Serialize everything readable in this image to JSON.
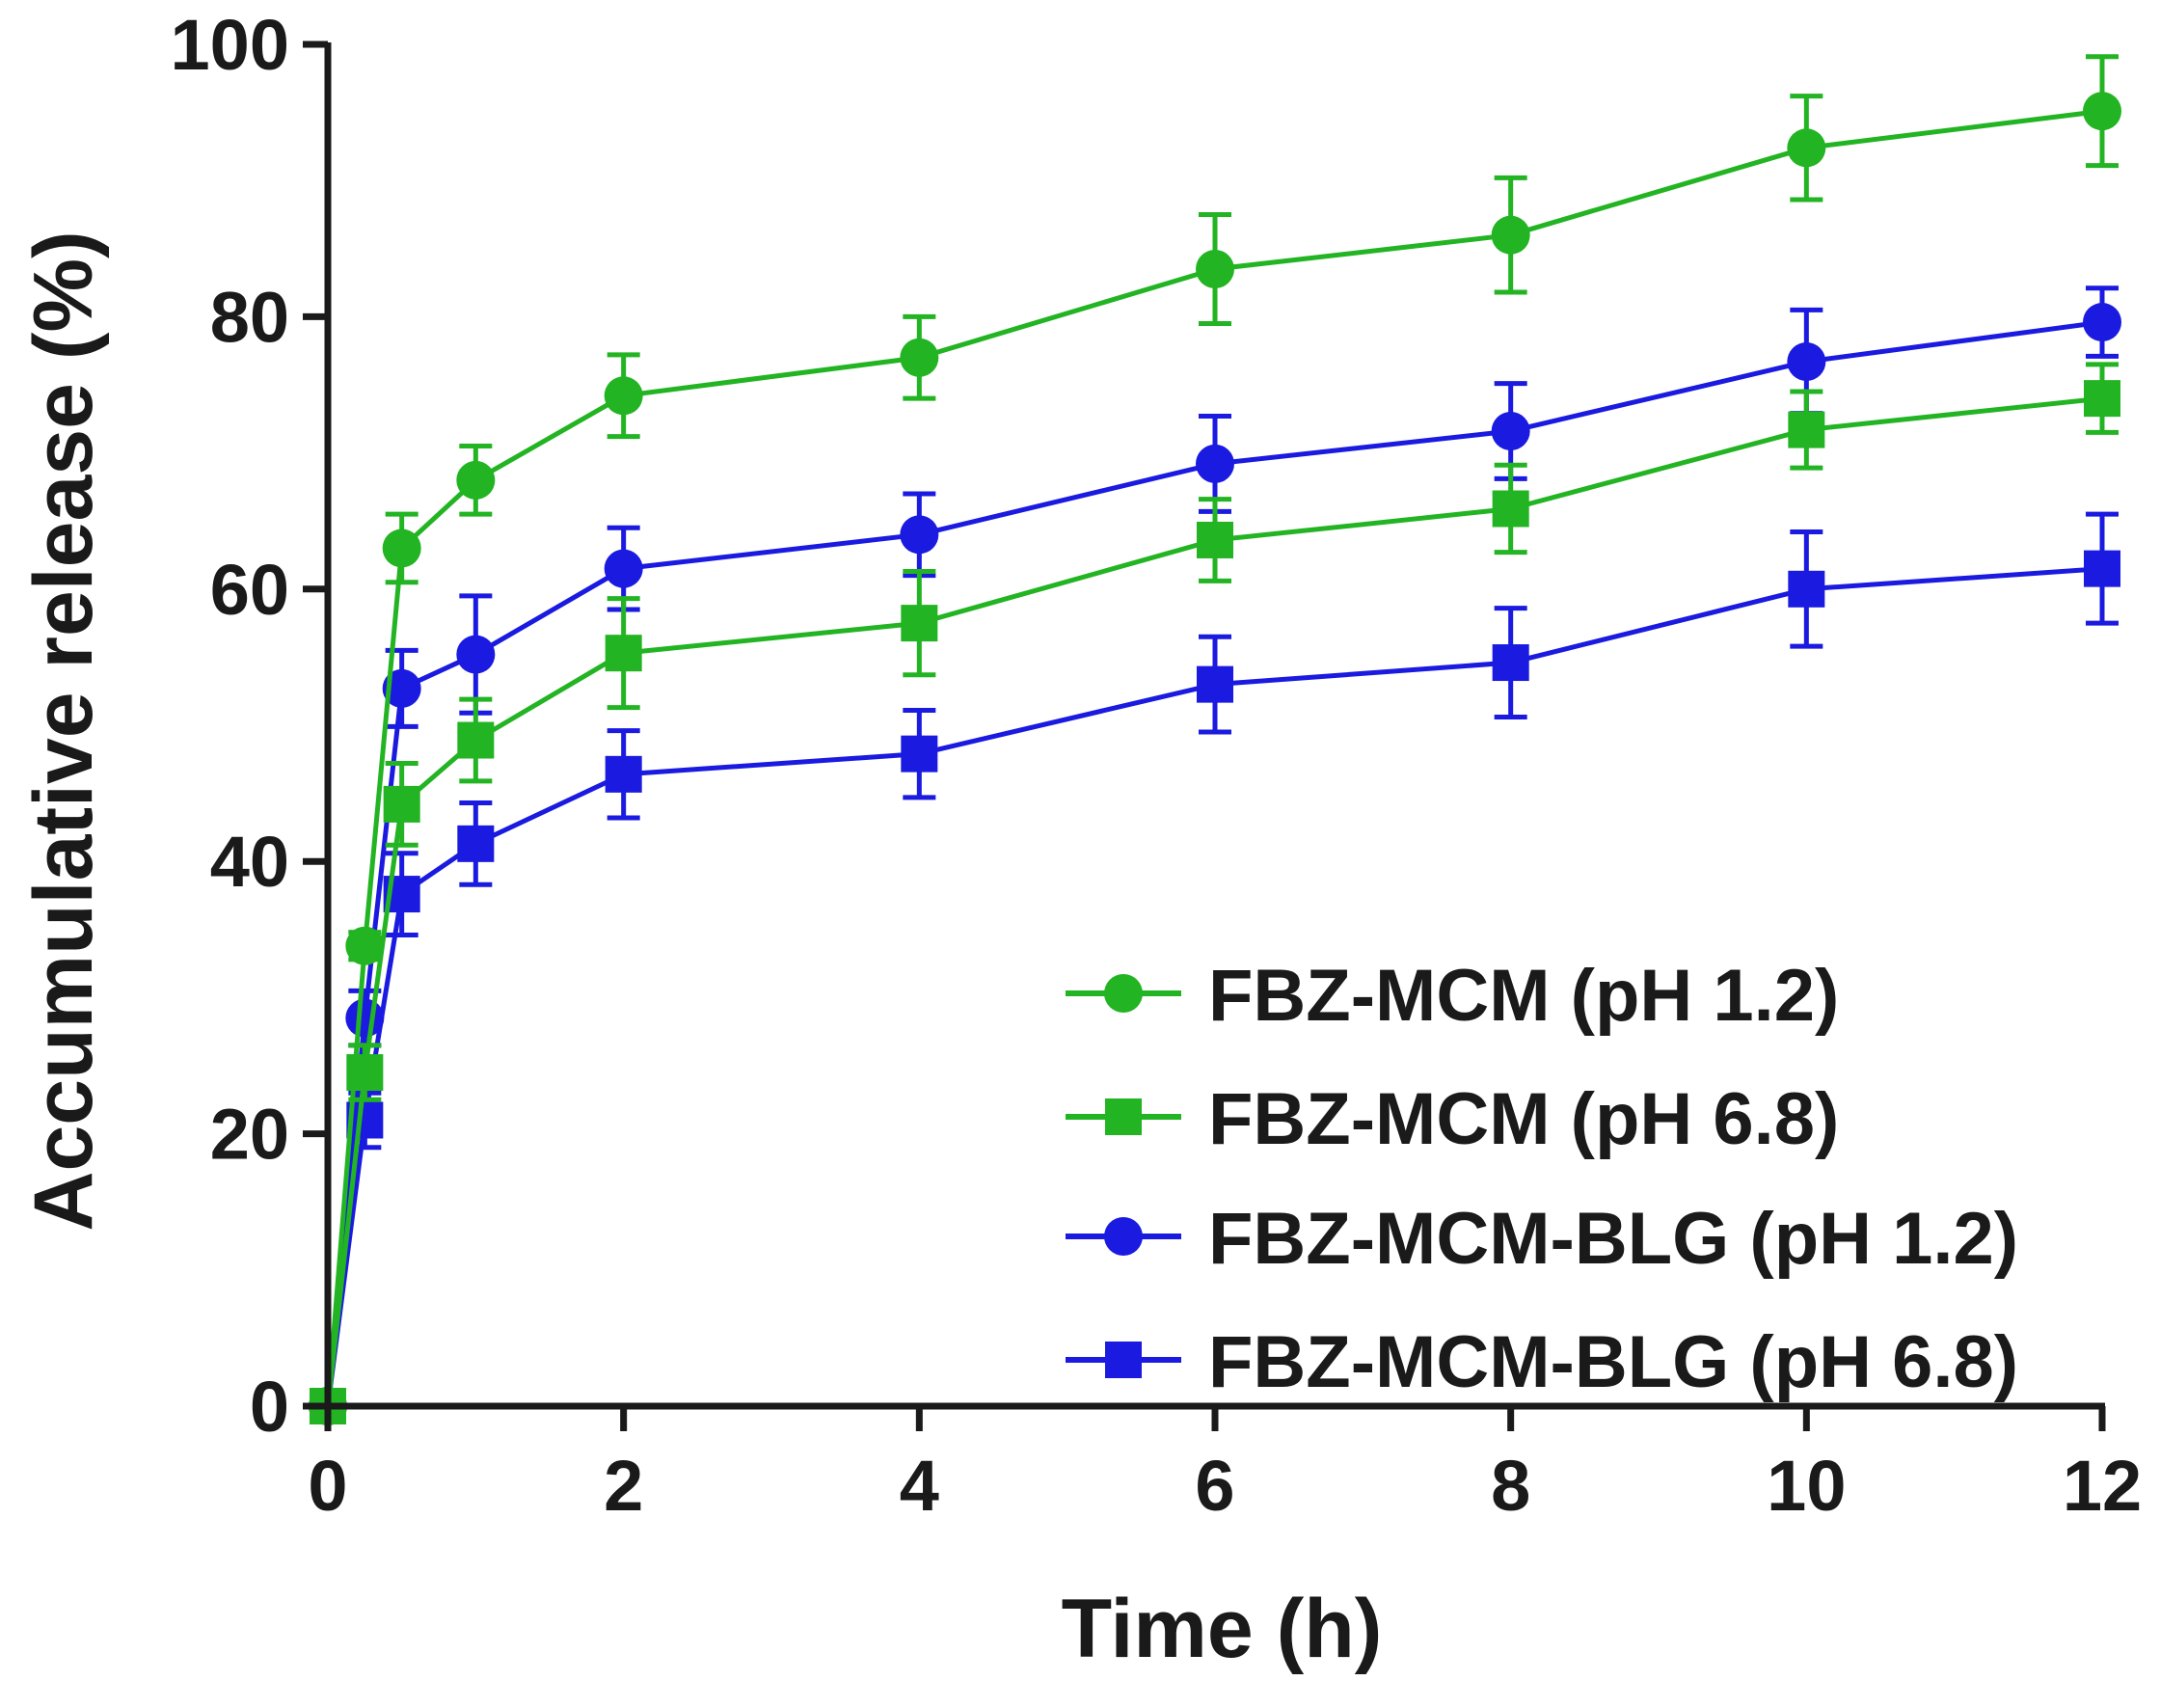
{
  "chart_data": {
    "type": "line",
    "title": "",
    "xlabel": "Time (h)",
    "ylabel": "Accumulative release (%)",
    "xlim": [
      0,
      12
    ],
    "ylim": [
      0,
      100
    ],
    "xticks": [
      0,
      2,
      4,
      6,
      8,
      10,
      12
    ],
    "yticks": [
      0,
      20,
      40,
      60,
      80,
      100
    ],
    "xtick_labels": [
      "0",
      "2",
      "4",
      "6",
      "8",
      "10",
      "12"
    ],
    "ytick_labels": [
      "0",
      "20",
      "40",
      "60",
      "80",
      "100"
    ],
    "grid": false,
    "legend_position": "bottom-right",
    "x": [
      0,
      0.25,
      0.5,
      1,
      2,
      4,
      6,
      8,
      10,
      12
    ],
    "series": [
      {
        "name": "FBZ-MCM (pH 1.2)",
        "marker": "circle",
        "color": "#22b422",
        "values": [
          0,
          33.8,
          63.0,
          68.0,
          74.2,
          77.0,
          83.5,
          86.0,
          92.4,
          95.1
        ],
        "errors": [
          0,
          1.0,
          2.5,
          2.5,
          3.0,
          3.0,
          4.0,
          4.2,
          3.8,
          4.0
        ]
      },
      {
        "name": "FBZ-MCM (pH 6.8)",
        "marker": "square",
        "color": "#22b422",
        "values": [
          0,
          24.5,
          44.2,
          48.9,
          55.3,
          57.5,
          63.6,
          65.9,
          71.7,
          74.0
        ],
        "errors": [
          0,
          2.0,
          3.0,
          3.0,
          4.0,
          3.8,
          3.0,
          3.2,
          2.8,
          2.5
        ]
      },
      {
        "name": "FBZ-MCM-BLG (pH 1.2)",
        "marker": "circle",
        "color": "#1a1ae0",
        "values": [
          0,
          28.5,
          52.7,
          55.2,
          61.5,
          64.0,
          69.2,
          71.6,
          76.7,
          79.6
        ],
        "errors": [
          0,
          2.0,
          2.8,
          4.3,
          3.0,
          3.0,
          3.5,
          3.5,
          3.8,
          2.5
        ]
      },
      {
        "name": "FBZ-MCM-BLG (pH 6.8)",
        "marker": "square",
        "color": "#1a1ae0",
        "values": [
          0,
          21.0,
          37.6,
          41.3,
          46.4,
          47.9,
          53.0,
          54.6,
          60.0,
          61.5
        ],
        "errors": [
          0,
          2.0,
          3.0,
          3.0,
          3.2,
          3.2,
          3.5,
          4.0,
          4.2,
          4.0
        ]
      }
    ]
  }
}
